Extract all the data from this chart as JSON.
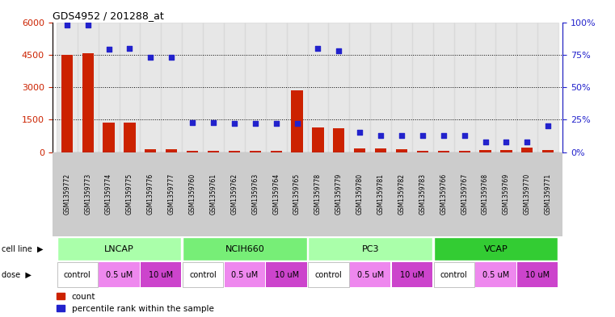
{
  "title": "GDS4952 / 201288_at",
  "samples": [
    "GSM1359772",
    "GSM1359773",
    "GSM1359774",
    "GSM1359775",
    "GSM1359776",
    "GSM1359777",
    "GSM1359760",
    "GSM1359761",
    "GSM1359762",
    "GSM1359763",
    "GSM1359764",
    "GSM1359765",
    "GSM1359778",
    "GSM1359779",
    "GSM1359780",
    "GSM1359781",
    "GSM1359782",
    "GSM1359783",
    "GSM1359766",
    "GSM1359767",
    "GSM1359768",
    "GSM1359769",
    "GSM1359770",
    "GSM1359771"
  ],
  "counts": [
    4500,
    4550,
    1350,
    1380,
    130,
    130,
    50,
    50,
    50,
    50,
    50,
    2850,
    1150,
    1100,
    160,
    160,
    130,
    60,
    50,
    50,
    80,
    80,
    210,
    80
  ],
  "percentile": [
    98,
    98,
    79,
    80,
    73,
    73,
    23,
    23,
    22,
    22,
    22,
    22,
    80,
    78,
    15,
    13,
    13,
    13,
    13,
    13,
    8,
    8,
    8,
    20
  ],
  "bar_color": "#cc2200",
  "dot_color": "#2222cc",
  "ylim_left": [
    0,
    6000
  ],
  "ylim_right": [
    0,
    100
  ],
  "yticks_left": [
    0,
    1500,
    3000,
    4500,
    6000
  ],
  "ytick_labels_left": [
    "0",
    "1500",
    "3000",
    "4500",
    "6000"
  ],
  "yticks_right": [
    0,
    25,
    50,
    75,
    100
  ],
  "ytick_labels_right": [
    "0%",
    "25%",
    "50%",
    "75%",
    "100%"
  ],
  "cell_groups": [
    {
      "name": "LNCAP",
      "start": 0,
      "end": 6,
      "color": "#aaffaa"
    },
    {
      "name": "NCIH660",
      "start": 6,
      "end": 12,
      "color": "#77ee77"
    },
    {
      "name": "PC3",
      "start": 12,
      "end": 18,
      "color": "#aaffaa"
    },
    {
      "name": "VCAP",
      "start": 18,
      "end": 24,
      "color": "#33cc33"
    }
  ],
  "dose_groups": [
    {
      "name": "control",
      "start": 0,
      "end": 2,
      "color": "#ffffff"
    },
    {
      "name": "0.5 uM",
      "start": 2,
      "end": 4,
      "color": "#ee88ee"
    },
    {
      "name": "10 uM",
      "start": 4,
      "end": 6,
      "color": "#cc44cc"
    },
    {
      "name": "control",
      "start": 6,
      "end": 8,
      "color": "#ffffff"
    },
    {
      "name": "0.5 uM",
      "start": 8,
      "end": 10,
      "color": "#ee88ee"
    },
    {
      "name": "10 uM",
      "start": 10,
      "end": 12,
      "color": "#cc44cc"
    },
    {
      "name": "control",
      "start": 12,
      "end": 14,
      "color": "#ffffff"
    },
    {
      "name": "0.5 uM",
      "start": 14,
      "end": 16,
      "color": "#ee88ee"
    },
    {
      "name": "10 uM",
      "start": 16,
      "end": 18,
      "color": "#cc44cc"
    },
    {
      "name": "control",
      "start": 18,
      "end": 20,
      "color": "#ffffff"
    },
    {
      "name": "0.5 uM",
      "start": 20,
      "end": 22,
      "color": "#ee88ee"
    },
    {
      "name": "10 uM",
      "start": 22,
      "end": 24,
      "color": "#cc44cc"
    }
  ],
  "legend_count_label": "count",
  "legend_pct_label": "percentile rank within the sample"
}
